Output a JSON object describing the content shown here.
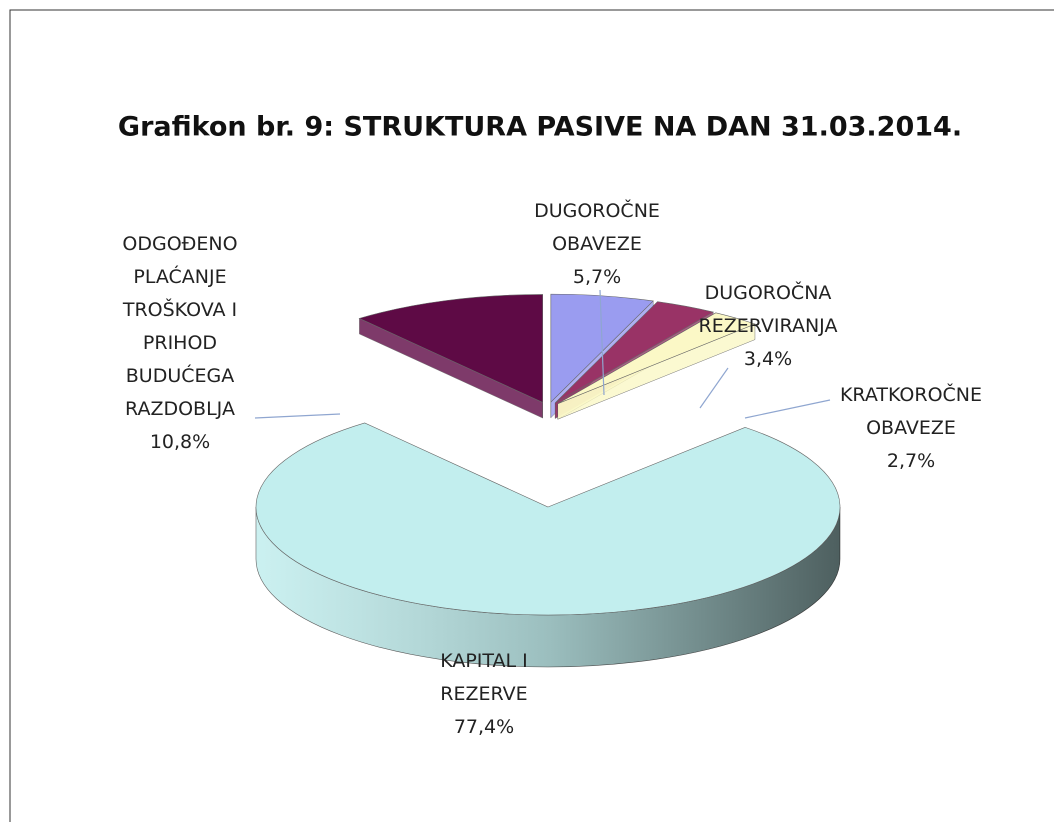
{
  "chart_data": {
    "type": "pie",
    "title": "Grafikon br. 9: STRUKTURA PASIVE NA DAN 31.03.2014.",
    "categories": [
      "DUGOROČNE OBAVEZE",
      "DUGOROČNA REZERVIRANJA",
      "KRATKOROČNE OBAVEZE",
      "KAPITAL I REZERVE",
      "ODGOĐENO PLAĆANJE TROŠKOVA I PRIHOD BUDUĆEGA RAZDOBLJA"
    ],
    "values": [
      5.7,
      3.4,
      2.7,
      77.4,
      10.8
    ],
    "value_labels": [
      "5,7%",
      "3,4%",
      "2,7%",
      "77,4%",
      "10,8%"
    ],
    "colors": [
      "#9a9cf0",
      "#993366",
      "#fbf8c6",
      "#c2eeee",
      "#5e0a45"
    ]
  }
}
